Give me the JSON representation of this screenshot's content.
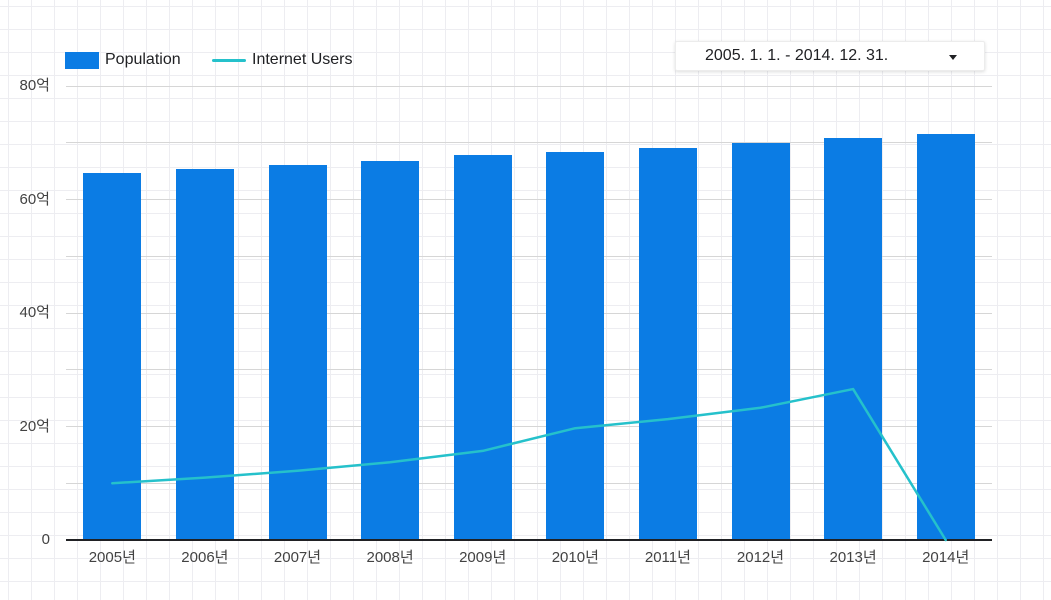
{
  "legend": {
    "items": [
      {
        "label": "Population",
        "type": "bar",
        "color": "#0b7ce4"
      },
      {
        "label": "Internet Users",
        "type": "line",
        "color": "#25c1cb"
      }
    ]
  },
  "date_range_selector": {
    "value": "2005. 1. 1. - 2014. 12. 31.",
    "icon": "dropdown-caret"
  },
  "chart_data": {
    "type": "bar",
    "subtype": "bar-and-line-combo",
    "title": "",
    "xlabel": "",
    "ylabel": "",
    "unit": "억 (hundred million)",
    "categories": [
      "2005년",
      "2006년",
      "2007년",
      "2008년",
      "2009년",
      "2010년",
      "2011년",
      "2012년",
      "2013년",
      "2014년"
    ],
    "series": [
      {
        "name": "Population",
        "type": "bar",
        "color": "#0b7ce4",
        "values": [
          64.6,
          65.4,
          66.1,
          66.8,
          67.8,
          68.4,
          69.1,
          70.0,
          70.8,
          71.6
        ]
      },
      {
        "name": "Internet Users",
        "type": "line",
        "color": "#25c1cb",
        "values": [
          10.0,
          11.0,
          12.2,
          13.7,
          15.7,
          19.7,
          21.3,
          23.3,
          26.6,
          0
        ]
      }
    ],
    "ylim": [
      0,
      80
    ],
    "grid_minor_interval": 10,
    "y_major_ticks": [
      {
        "value": 0,
        "label": "0"
      },
      {
        "value": 20,
        "label": "20억"
      },
      {
        "value": 40,
        "label": "40억"
      },
      {
        "value": 60,
        "label": "60억"
      },
      {
        "value": 80,
        "label": "80억"
      }
    ],
    "grid": true,
    "legend_position": "top-left"
  }
}
